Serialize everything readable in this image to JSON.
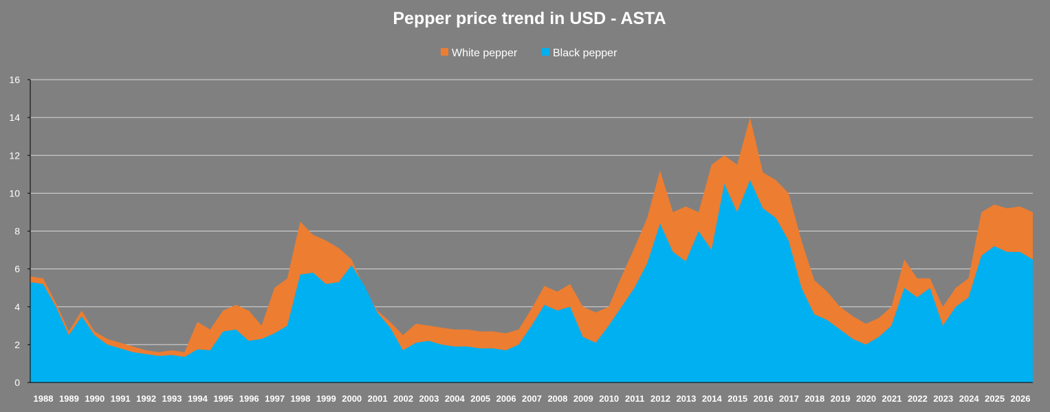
{
  "colors": {
    "background": "#808080",
    "white_pepper": "#ED7D31",
    "black_pepper": "#00B0F0",
    "grid": "#D9D9D9",
    "text": "#FFFFFF"
  },
  "chart_data": {
    "type": "area",
    "title": "Pepper price trend in USD - ASTA",
    "xlabel": "",
    "ylabel": "",
    "ylim": [
      0,
      16
    ],
    "yticks": [
      0,
      2,
      4,
      6,
      8,
      10,
      12,
      14,
      16
    ],
    "grid": true,
    "legend_position": "top-center",
    "x_ticks": [
      "1988",
      "1989",
      "1990",
      "1991",
      "1992",
      "1993",
      "1994",
      "1995",
      "1996",
      "1997",
      "1998",
      "1999",
      "2000",
      "2001",
      "2002",
      "2003",
      "2004",
      "2005",
      "2006",
      "2007",
      "2008",
      "2009",
      "2010",
      "2011",
      "2012",
      "2013",
      "2014",
      "2015",
      "2016",
      "2017",
      "2018",
      "2019",
      "2020",
      "2021",
      "2022",
      "2023",
      "2024",
      "2025",
      "2026"
    ],
    "series": [
      {
        "name": "White pepper",
        "color": "#ED7D31",
        "values": [
          5.6,
          5.5,
          4.2,
          2.7,
          3.8,
          2.7,
          2.3,
          2.1,
          1.9,
          1.7,
          1.6,
          1.7,
          1.6,
          3.2,
          2.8,
          3.8,
          4.1,
          3.8,
          3.0,
          5.0,
          5.5,
          8.5,
          7.8,
          7.5,
          7.1,
          6.5,
          5.0,
          3.8,
          3.2,
          2.5,
          3.1,
          3.0,
          2.9,
          2.8,
          2.8,
          2.7,
          2.7,
          2.6,
          2.8,
          3.9,
          5.1,
          4.8,
          5.2,
          4.0,
          3.7,
          4.0,
          5.6,
          7.1,
          8.7,
          11.2,
          9.0,
          9.3,
          9.0,
          11.5,
          12.0,
          11.5,
          14.0,
          11.1,
          10.7,
          10.0,
          7.5,
          5.4,
          4.8,
          4.0,
          3.5,
          3.1,
          3.4,
          4.0,
          6.5,
          5.5,
          5.5,
          4.0,
          5.0,
          5.5,
          9.0,
          9.4,
          9.2,
          9.3,
          9.0
        ]
      },
      {
        "name": "Black pepper",
        "color": "#00B0F0",
        "values": [
          5.3,
          5.2,
          4.0,
          2.5,
          3.5,
          2.5,
          2.0,
          1.8,
          1.6,
          1.5,
          1.4,
          1.45,
          1.35,
          1.75,
          1.7,
          2.7,
          2.8,
          2.2,
          2.3,
          2.6,
          3.0,
          5.7,
          5.8,
          5.2,
          5.3,
          6.2,
          5.1,
          3.7,
          2.9,
          1.7,
          2.1,
          2.2,
          2.0,
          1.9,
          1.9,
          1.8,
          1.8,
          1.7,
          2.0,
          3.0,
          4.1,
          3.8,
          4.0,
          2.4,
          2.1,
          3.0,
          4.0,
          5.0,
          6.3,
          8.4,
          6.9,
          6.4,
          8.0,
          7.0,
          10.5,
          9.0,
          10.7,
          9.2,
          8.7,
          7.5,
          5.0,
          3.6,
          3.3,
          2.8,
          2.3,
          2.0,
          2.4,
          3.0,
          5.0,
          4.5,
          5.0,
          3.0,
          4.0,
          4.5,
          6.7,
          7.2,
          6.9,
          6.9,
          6.5
        ]
      }
    ]
  }
}
